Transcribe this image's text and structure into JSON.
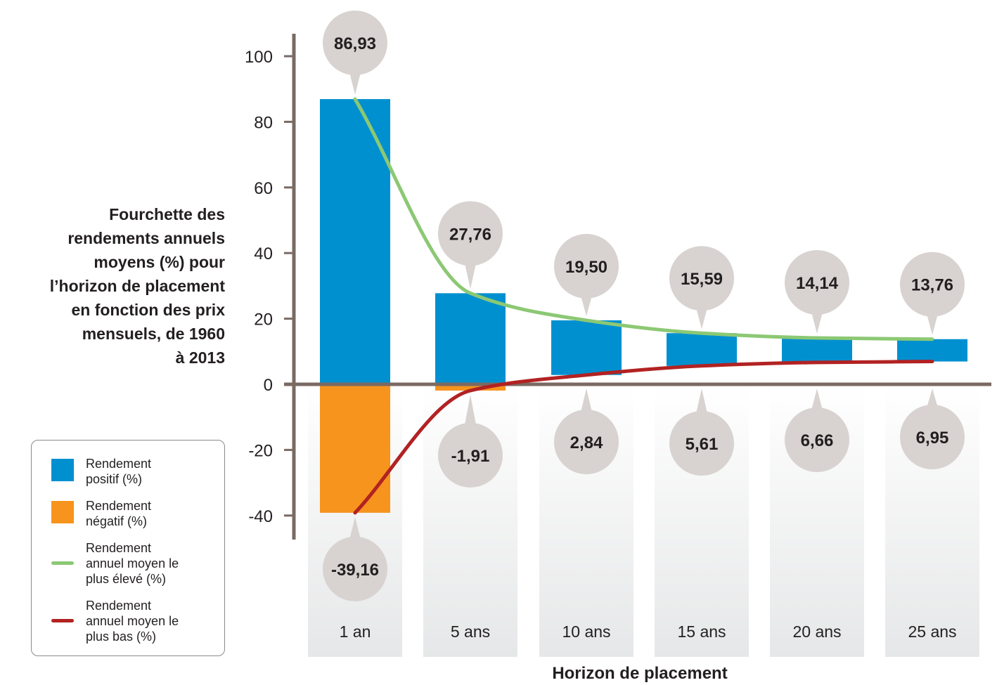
{
  "chart_data": {
    "type": "bar",
    "title": "",
    "xlabel": "Horizon de placement",
    "ylabel_lines": [
      "Fourchette des",
      "rendements annuels",
      "moyens (%) pour",
      "l’horizon de placement",
      "en fonction des prix",
      "mensuels, de 1960",
      "à 2013"
    ],
    "categories": [
      "1 an",
      "5 ans",
      "10 ans",
      "15 ans",
      "20 ans",
      "25 ans"
    ],
    "ylim": [
      -40,
      100
    ],
    "yticks": [
      100,
      80,
      60,
      40,
      20,
      0,
      -20,
      -40
    ],
    "ytick_labels": [
      "100",
      "80",
      "60",
      "40",
      "20",
      "0",
      "-20",
      "-40"
    ],
    "series": [
      {
        "name": "Rendement annuel moyen le plus élevé (%)",
        "values": [
          86.93,
          27.76,
          19.5,
          15.59,
          14.14,
          13.76
        ],
        "labels": [
          "86,93",
          "27,76",
          "19,50",
          "15,59",
          "14,14",
          "13,76"
        ]
      },
      {
        "name": "Rendement annuel moyen le plus bas (%)",
        "values": [
          -39.16,
          -1.91,
          2.84,
          5.61,
          6.66,
          6.95
        ],
        "labels": [
          "-39,16",
          "-1,91",
          "2,84",
          "5,61",
          "6,66",
          "6,95"
        ]
      }
    ],
    "colors": {
      "positive": "#0090d0",
      "negative": "#f7941d",
      "high_line": "#8cc874",
      "low_line": "#b22222",
      "axis": "#7a6a63",
      "bubble": "#d8d3d0",
      "column_bg_top": "#ffffff",
      "column_bg_bottom": "#e6e7e8"
    },
    "legend_position": "bottom-left"
  },
  "legend": {
    "items": [
      {
        "text": "Rendement positif (%)",
        "lines": [
          "Rendement",
          "positif (%)"
        ],
        "kind": "box",
        "color": "#0090d0"
      },
      {
        "text": "Rendement négatif (%)",
        "lines": [
          "Rendement",
          "négatif (%)"
        ],
        "kind": "box",
        "color": "#f7941d"
      },
      {
        "text": "Rendement annuel moyen le plus élevé (%)",
        "lines": [
          "Rendement",
          "annuel moyen le",
          "plus élevé (%)"
        ],
        "kind": "line",
        "color": "#8cc874"
      },
      {
        "text": "Rendement annuel moyen le plus bas (%)",
        "lines": [
          "Rendement",
          "annuel moyen le",
          "plus bas (%)"
        ],
        "kind": "line",
        "color": "#b22222"
      }
    ]
  }
}
